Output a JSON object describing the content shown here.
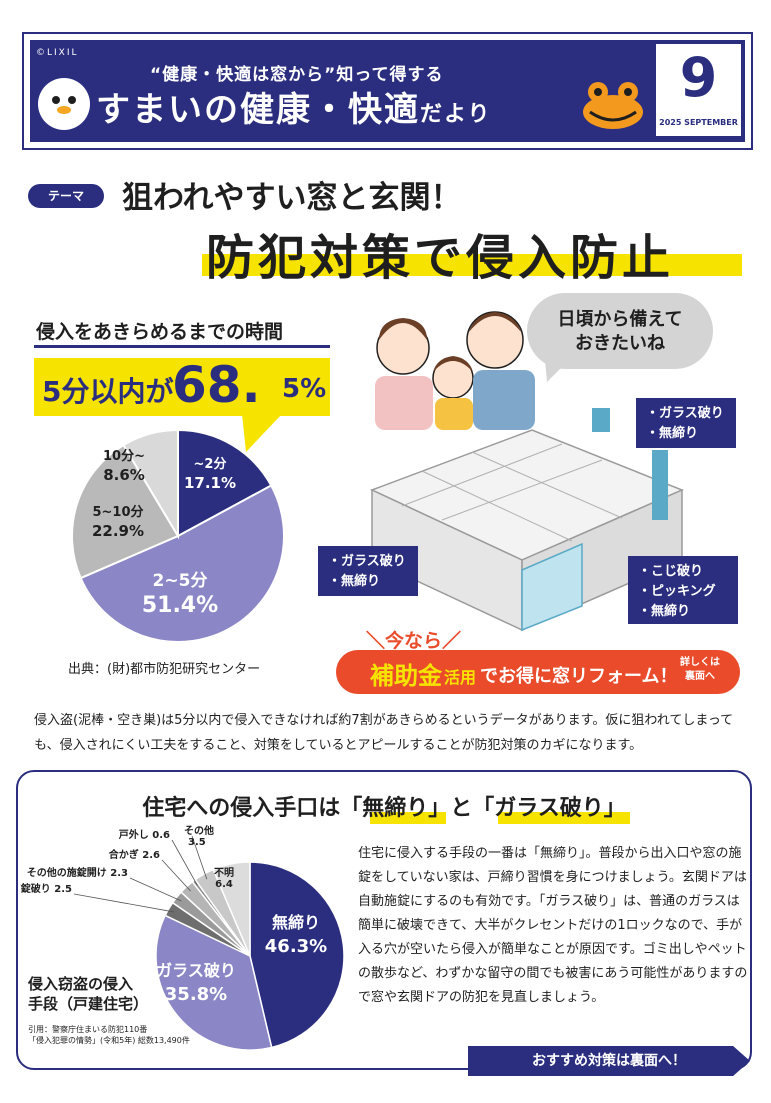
{
  "header": {
    "brand": "©LIXIL",
    "subtitle": "“健康・快適は窓から”知って得する",
    "title_a": "すまいの健康・快適",
    "title_b": "だより",
    "month": "9",
    "month_label": "2025 SEPTEMBER"
  },
  "theme": {
    "tag": "テーマ",
    "line1": "狙われやすい窓と玄関！",
    "line2": "防犯対策で侵入防止"
  },
  "time_pie": {
    "title": "侵入をあきらめるまでの時間",
    "highlight_a": "5分以内が",
    "highlight_b": "68.",
    "highlight_c": "5%",
    "source": "出典：(財)都市防犯研究センター"
  },
  "illustration": {
    "bubble": "日頃から備えて\nおきたいね",
    "callout_window_top": "・ガラス破り\n・無締り",
    "callout_window_left": "・ガラス破り\n・無締り",
    "callout_door": "・こじ破り\n・ピッキング\n・無締り"
  },
  "subsidy": {
    "now": "＼今なら／",
    "main": "補助金",
    "use": "活用",
    "rest": "でお得に窓リフォーム！",
    "detail": "詳しくは\n裏面へ"
  },
  "body1": "侵入盗(泥棒・空き巣)は5分以内で侵入できなければ約7割があきらめるというデータがあります。仮に狙われてしまっても、侵入されにくい工夫をすること、対策をしているとアピールすることが防犯対策のカギになります。",
  "methods": {
    "title": "住宅への侵入手口は「無締り」と「ガラス破り」",
    "caption": "侵入窃盗の侵入\n手段（戸建住宅）",
    "source": "引用：警察庁住まいる防犯110番\n「侵入犯罪の情勢」(令和5年) 総数13,490件",
    "body": "住宅に侵入する手段の一番は「無締り」。普段から出入口や窓の施錠をしていない家は、戸締り習慣を身につけましょう。玄関ドアは自動施錠にするのも有効です。「ガラス破り」は、普通のガラスは簡単に破壊できて、大半がクレセントだけの1ロックなので、手が入る穴が空いたら侵入が簡単なことが原因です。ゴミ出しやペットの散歩など、わずかな留守の間でも被害にあう可能性がありますので窓や玄関ドアの防犯を見直しましょう。",
    "recommend": "おすすめ対策は裏面へ！"
  },
  "chart_data": [
    {
      "type": "pie",
      "categories": [
        "~2分",
        "2~5分",
        "5~10分",
        "10分~"
      ],
      "values": [
        17.1,
        51.4,
        22.9,
        8.6
      ],
      "value_labels": [
        "17.1%",
        "51.4%",
        "22.9%",
        "8.6%"
      ],
      "colors": [
        "#2b2e7f",
        "#8b86c6",
        "#b9b9b9",
        "#d9d9d9"
      ]
    },
    {
      "type": "pie",
      "categories": [
        "無締り",
        "ガラス破り",
        "ドア錠破り",
        "その他の施錠開け",
        "合かぎ",
        "戸外し",
        "その他",
        "不明"
      ],
      "values": [
        46.3,
        35.8,
        2.5,
        2.3,
        2.6,
        0.6,
        3.5,
        6.4
      ],
      "value_labels": [
        "46.3%",
        "35.8%",
        "2.5",
        "2.3",
        "2.6",
        "0.6",
        "3.5",
        "6.4"
      ],
      "colors": [
        "#2b2e7f",
        "#8b86c6",
        "#6e6e6e",
        "#9a9a9a",
        "#b5b5b5",
        "#8c8c8c",
        "#c8c8c8",
        "#dcdcdc"
      ]
    }
  ]
}
